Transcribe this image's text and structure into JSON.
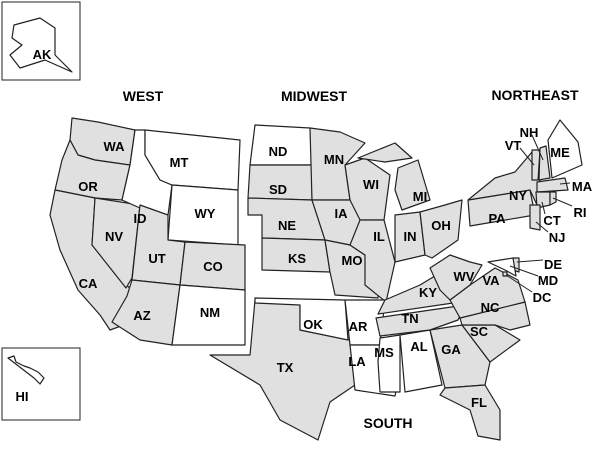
{
  "colors": {
    "shaded": "#e0e0e0",
    "unshaded": "#ffffff",
    "border": "#222222"
  },
  "regions": {
    "west": "WEST",
    "midwest": "MIDWEST",
    "northeast": "NORTHEAST",
    "south": "SOUTH"
  },
  "states": [
    {
      "code": "WA",
      "shaded": true
    },
    {
      "code": "OR",
      "shaded": true
    },
    {
      "code": "CA",
      "shaded": true
    },
    {
      "code": "NV",
      "shaded": true
    },
    {
      "code": "ID",
      "shaded": false
    },
    {
      "code": "MT",
      "shaded": false
    },
    {
      "code": "WY",
      "shaded": false
    },
    {
      "code": "UT",
      "shaded": true
    },
    {
      "code": "CO",
      "shaded": true
    },
    {
      "code": "AZ",
      "shaded": true
    },
    {
      "code": "NM",
      "shaded": false
    },
    {
      "code": "ND",
      "shaded": false
    },
    {
      "code": "SD",
      "shaded": true
    },
    {
      "code": "NE",
      "shaded": true
    },
    {
      "code": "KS",
      "shaded": true
    },
    {
      "code": "MN",
      "shaded": true
    },
    {
      "code": "IA",
      "shaded": true
    },
    {
      "code": "MO",
      "shaded": true
    },
    {
      "code": "WI",
      "shaded": true
    },
    {
      "code": "IL",
      "shaded": true
    },
    {
      "code": "MI",
      "shaded": true
    },
    {
      "code": "IN",
      "shaded": true
    },
    {
      "code": "OH",
      "shaded": true
    },
    {
      "code": "TX",
      "shaded": true
    },
    {
      "code": "OK",
      "shaded": false
    },
    {
      "code": "AR",
      "shaded": false
    },
    {
      "code": "LA",
      "shaded": false
    },
    {
      "code": "MS",
      "shaded": false
    },
    {
      "code": "AL",
      "shaded": false
    },
    {
      "code": "TN",
      "shaded": true
    },
    {
      "code": "KY",
      "shaded": true
    },
    {
      "code": "GA",
      "shaded": true
    },
    {
      "code": "FL",
      "shaded": true
    },
    {
      "code": "SC",
      "shaded": true
    },
    {
      "code": "NC",
      "shaded": true
    },
    {
      "code": "VA",
      "shaded": true
    },
    {
      "code": "WV",
      "shaded": true
    },
    {
      "code": "PA",
      "shaded": true
    },
    {
      "code": "NY",
      "shaded": true
    },
    {
      "code": "VT",
      "shaded": true
    },
    {
      "code": "NH",
      "shaded": true
    },
    {
      "code": "ME",
      "shaded": false
    },
    {
      "code": "MA",
      "shaded": true
    },
    {
      "code": "CT",
      "shaded": true
    },
    {
      "code": "RI",
      "shaded": true
    },
    {
      "code": "NJ",
      "shaded": true
    },
    {
      "code": "DE",
      "shaded": true
    },
    {
      "code": "MD",
      "shaded": false
    },
    {
      "code": "DC",
      "shaded": true
    },
    {
      "code": "AK",
      "shaded": false
    },
    {
      "code": "HI",
      "shaded": false
    }
  ]
}
